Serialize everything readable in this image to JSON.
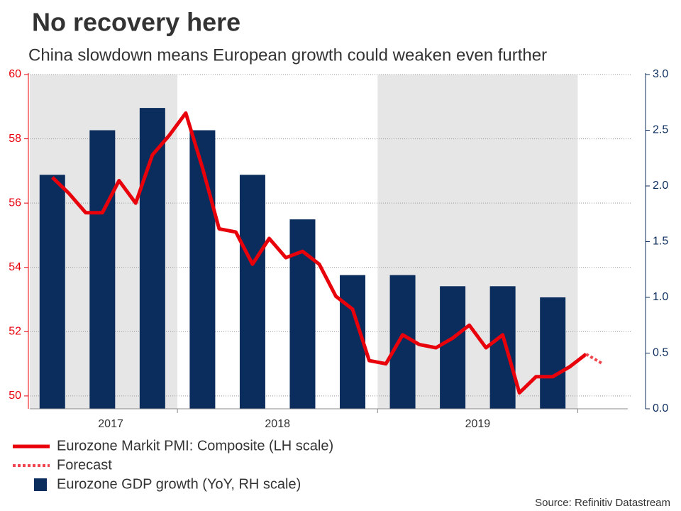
{
  "chart_data": {
    "type": "combo",
    "title": "No recovery here",
    "subtitle": "China slowdown means European growth could weaken even further",
    "source": "Source: Refinitiv Datastream",
    "categories": [
      null,
      null,
      null,
      null,
      null,
      "2017",
      null,
      null,
      null,
      null,
      null,
      null,
      null,
      null,
      null,
      "2018",
      null,
      null,
      null,
      null,
      null,
      null,
      null,
      null,
      null,
      null,
      null,
      "2019",
      null,
      null,
      null,
      null,
      null,
      null,
      null,
      null
    ],
    "ylim": [
      49.6,
      60
    ],
    "yticks": [
      50,
      52,
      54,
      56,
      58,
      60
    ],
    "y2lim": [
      0,
      3
    ],
    "y2ticks": [
      {
        "value": 0,
        "label": "0.0"
      },
      0.5,
      {
        "value": 1,
        "label": "1.0"
      },
      1.5,
      {
        "value": 2,
        "label": "2.0"
      },
      2.5,
      {
        "value": 3,
        "label": "3.0"
      }
    ],
    "grid": true,
    "series": [
      {
        "name": "Eurozone Markit PMI: Composite (LH scale)",
        "type": "line",
        "style": "solid",
        "color": "#e8000b",
        "values": [
          null,
          56.8,
          56.3,
          55.7,
          55.7,
          56.7,
          56.0,
          57.5,
          58.1,
          58.8,
          57.1,
          55.2,
          55.1,
          54.1,
          54.9,
          54.3,
          54.5,
          54.1,
          53.1,
          52.7,
          51.1,
          51.0,
          51.9,
          51.6,
          51.5,
          51.8,
          52.2,
          51.5,
          51.9,
          50.1,
          50.6,
          50.6,
          50.9,
          51.3,
          null,
          null
        ]
      },
      {
        "name": "Forecast",
        "type": "line",
        "style": "dotted",
        "color": "#f0454c",
        "values": [
          null,
          null,
          null,
          null,
          null,
          null,
          null,
          null,
          null,
          null,
          null,
          null,
          null,
          null,
          null,
          null,
          null,
          null,
          null,
          null,
          null,
          null,
          null,
          null,
          null,
          null,
          null,
          null,
          null,
          null,
          null,
          null,
          null,
          51.3,
          51.0,
          null
        ]
      },
      {
        "name": "Eurozone GDP growth (YoY, RH scale)",
        "type": "bar",
        "axis": "y2",
        "color": "#0b2d5e",
        "values": [
          null,
          2.1,
          null,
          null,
          2.5,
          null,
          null,
          2.7,
          null,
          null,
          2.5,
          null,
          null,
          2.1,
          null,
          null,
          1.7,
          null,
          null,
          1.2,
          null,
          null,
          1.2,
          null,
          null,
          1.1,
          null,
          null,
          1.1,
          null,
          null,
          1.0,
          null,
          null,
          null,
          null
        ]
      }
    ]
  }
}
